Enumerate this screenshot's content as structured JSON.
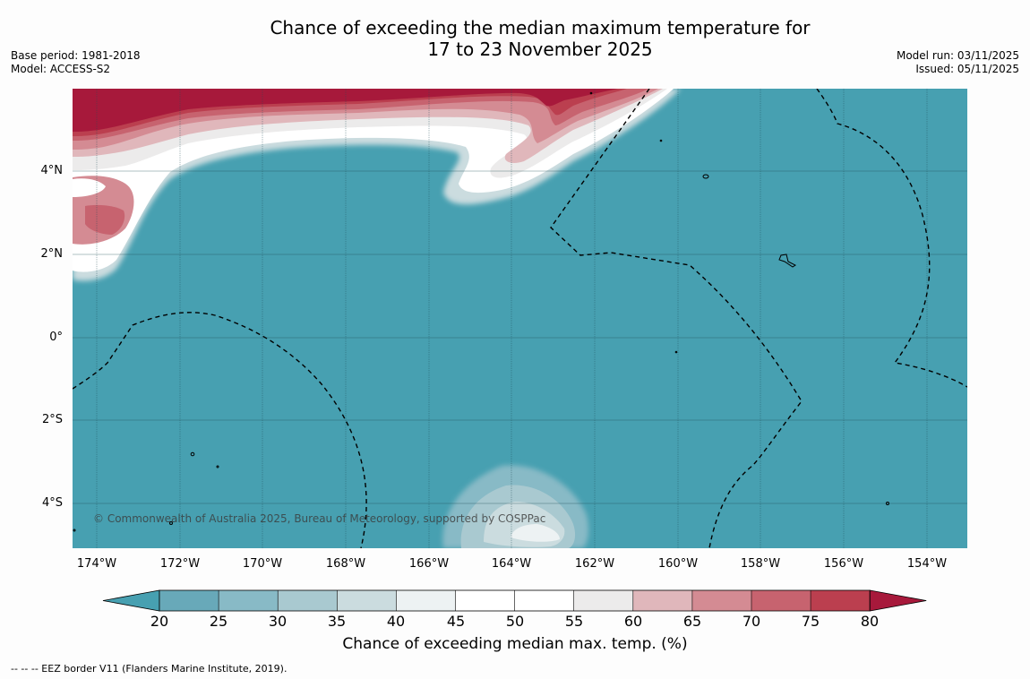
{
  "title": {
    "line1": "Chance of exceeding the median maximum temperature for",
    "line2": "17 to 23 November 2025"
  },
  "meta_left": {
    "base_period": "Base period: 1981-2018",
    "model": "Model: ACCESS-S2"
  },
  "meta_right": {
    "model_run": "Model run: 03/11/2025",
    "issued": "Issued: 05/11/2025"
  },
  "map": {
    "lat_labels": [
      "4°N",
      "2°N",
      "0°",
      "2°S",
      "4°S"
    ],
    "lon_labels": [
      "174°W",
      "172°W",
      "170°W",
      "168°W",
      "166°W",
      "164°W",
      "162°W",
      "160°W",
      "158°W",
      "156°W",
      "154°W"
    ],
    "copyright": "© Commonwealth of Australia 2025, Bureau of Meteorology, supported by COSPPac",
    "background_color": "#47a0b1"
  },
  "colorbar": {
    "levels": [
      "20",
      "25",
      "30",
      "35",
      "40",
      "45",
      "50",
      "55",
      "60",
      "65",
      "70",
      "75",
      "80"
    ],
    "colors": [
      "#47a0b1",
      "#68a9b9",
      "#88bac6",
      "#a9c9d0",
      "#cbdcdf",
      "#edf2f3",
      "#ffffff",
      "#ffffff",
      "#ecebeb",
      "#e0b7bb",
      "#d48b93",
      "#c7636f",
      "#bb3f4f",
      "#a7193b"
    ],
    "title": "Chance of exceeding median max. temp. (%)"
  },
  "footnote": "--  --  -- EEZ border V11 (Flanders Marine Institute, 2019)."
}
